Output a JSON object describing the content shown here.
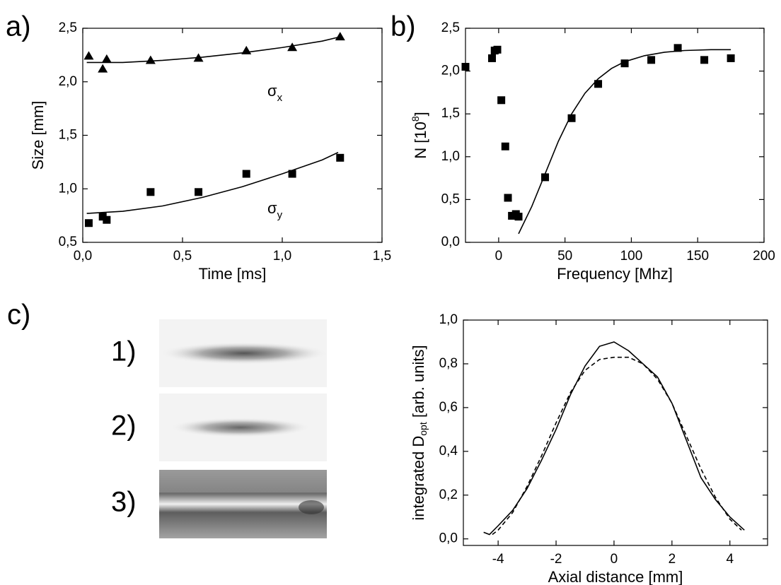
{
  "chart_data": [
    {
      "type": "scatter",
      "panel": "a)",
      "xlabel": "Time [ms]",
      "ylabel": "Size [mm]",
      "xlim": [
        0,
        1.5
      ],
      "ylim": [
        0.5,
        2.5
      ],
      "xticks": [
        {
          "value": 0,
          "label": "0,0"
        },
        {
          "value": 0.5,
          "label": "0,5"
        },
        {
          "value": 1,
          "label": "1,0"
        },
        {
          "value": 1.5,
          "label": "1,5"
        }
      ],
      "yticks": [
        {
          "value": 0.5,
          "label": "0,5"
        },
        {
          "value": 1,
          "label": "1,0"
        },
        {
          "value": 1.5,
          "label": "1,5"
        },
        {
          "value": 2,
          "label": "2,0"
        },
        {
          "value": 2.5,
          "label": "2,5"
        }
      ],
      "annotations": [
        {
          "text": "σ",
          "sub": "x"
        },
        {
          "text": "σ",
          "sub": "y"
        }
      ],
      "series": [
        {
          "marker": "triangle",
          "color": "#000000",
          "x": [
            0.03,
            0.1,
            0.12,
            0.34,
            0.58,
            0.82,
            1.05,
            1.29
          ],
          "values": [
            2.24,
            2.12,
            2.21,
            2.2,
            2.22,
            2.29,
            2.32,
            2.42
          ]
        },
        {
          "marker": "square",
          "color": "#000000",
          "x": [
            0.03,
            0.1,
            0.12,
            0.34,
            0.58,
            0.82,
            1.05,
            1.29
          ],
          "values": [
            0.68,
            0.74,
            0.71,
            0.97,
            0.97,
            1.14,
            1.14,
            1.29
          ]
        },
        {
          "style": "solid",
          "color": "#000000",
          "x": [
            0.02,
            0.2,
            0.4,
            0.6,
            0.8,
            1.0,
            1.2,
            1.29
          ],
          "values": [
            2.18,
            2.18,
            2.2,
            2.23,
            2.27,
            2.32,
            2.38,
            2.42
          ]
        },
        {
          "style": "solid",
          "color": "#000000",
          "x": [
            0.02,
            0.2,
            0.4,
            0.6,
            0.8,
            1.0,
            1.2,
            1.28
          ],
          "values": [
            0.77,
            0.79,
            0.84,
            0.92,
            1.02,
            1.14,
            1.27,
            1.34
          ]
        }
      ]
    },
    {
      "type": "scatter",
      "panel": "b)",
      "xlabel": "Frequency [Mhz]",
      "ylabel": [
        {
          "text": "N [10"
        },
        {
          "text": "8",
          "script": "sup"
        },
        {
          "text": "]"
        }
      ],
      "xlim": [
        -25,
        200
      ],
      "ylim": [
        0,
        2.5
      ],
      "xticks": [
        0,
        50,
        100,
        150,
        200
      ],
      "yticks": [
        {
          "value": 0,
          "label": "0,0"
        },
        {
          "value": 0.5,
          "label": "0,5"
        },
        {
          "value": 1,
          "label": "1,0"
        },
        {
          "value": 1.5,
          "label": "1,5"
        },
        {
          "value": 2,
          "label": "2,0"
        },
        {
          "value": 2.5,
          "label": "2,5"
        }
      ],
      "series": [
        {
          "marker": "square",
          "color": "#000000",
          "x": [
            -25,
            -5,
            -3,
            -1,
            2,
            5,
            7,
            10,
            13,
            15,
            35,
            55,
            75,
            95,
            115,
            135,
            155,
            175
          ],
          "values": [
            2.05,
            2.15,
            2.24,
            2.25,
            1.66,
            1.12,
            0.52,
            0.31,
            0.33,
            0.3,
            0.76,
            1.45,
            1.85,
            2.09,
            2.13,
            2.27,
            2.13,
            2.15
          ]
        },
        {
          "style": "solid",
          "color": "#000000",
          "x": [
            15,
            25,
            35,
            45,
            55,
            65,
            75,
            85,
            95,
            110,
            125,
            140,
            160,
            175
          ],
          "values": [
            0.1,
            0.42,
            0.8,
            1.18,
            1.5,
            1.74,
            1.91,
            2.03,
            2.11,
            2.18,
            2.22,
            2.24,
            2.25,
            2.25
          ]
        }
      ]
    },
    {
      "type": "line",
      "xlabel": "Axial distance [mm]",
      "ylabel": [
        {
          "text": "integrated D"
        },
        {
          "text": "opt",
          "script": "sub"
        },
        {
          "text": " [arb. units]"
        }
      ],
      "xlim": [
        -5.2,
        5.3
      ],
      "ylim": [
        -0.03,
        1.0
      ],
      "xticks": [
        -4,
        -2,
        0,
        2,
        4
      ],
      "yticks": [
        {
          "value": 0,
          "label": "0,0"
        },
        {
          "value": 0.2,
          "label": "0,2"
        },
        {
          "value": 0.4,
          "label": "0,4"
        },
        {
          "value": 0.6,
          "label": "0,6"
        },
        {
          "value": 0.8,
          "label": "0,8"
        },
        {
          "value": 1,
          "label": "1,0"
        }
      ],
      "series": [
        {
          "style": "solid",
          "color": "#000000",
          "x": [
            -4.5,
            -4.3,
            -4,
            -3.5,
            -3,
            -2.5,
            -2,
            -1.5,
            -1,
            -0.5,
            0,
            0.5,
            1,
            1.5,
            2,
            2.5,
            3,
            3.5,
            4,
            4.5
          ],
          "values": [
            0.03,
            0.02,
            0.06,
            0.13,
            0.23,
            0.36,
            0.5,
            0.66,
            0.79,
            0.88,
            0.9,
            0.86,
            0.8,
            0.74,
            0.62,
            0.45,
            0.28,
            0.18,
            0.1,
            0.04
          ]
        },
        {
          "style": "dashed",
          "color": "#000000",
          "x": [
            -4.2,
            -4,
            -3.5,
            -3,
            -2.5,
            -2,
            -1.5,
            -1,
            -0.5,
            0,
            0.5,
            1,
            1.5,
            2,
            2.5,
            3,
            3.5,
            4,
            4.4
          ],
          "values": [
            0.02,
            0.04,
            0.12,
            0.24,
            0.38,
            0.53,
            0.67,
            0.77,
            0.82,
            0.83,
            0.83,
            0.8,
            0.73,
            0.62,
            0.47,
            0.32,
            0.19,
            0.09,
            0.04
          ]
        }
      ]
    }
  ],
  "images": {
    "panel": "c)",
    "labels": [
      "1)",
      "2)",
      "3)"
    ]
  }
}
